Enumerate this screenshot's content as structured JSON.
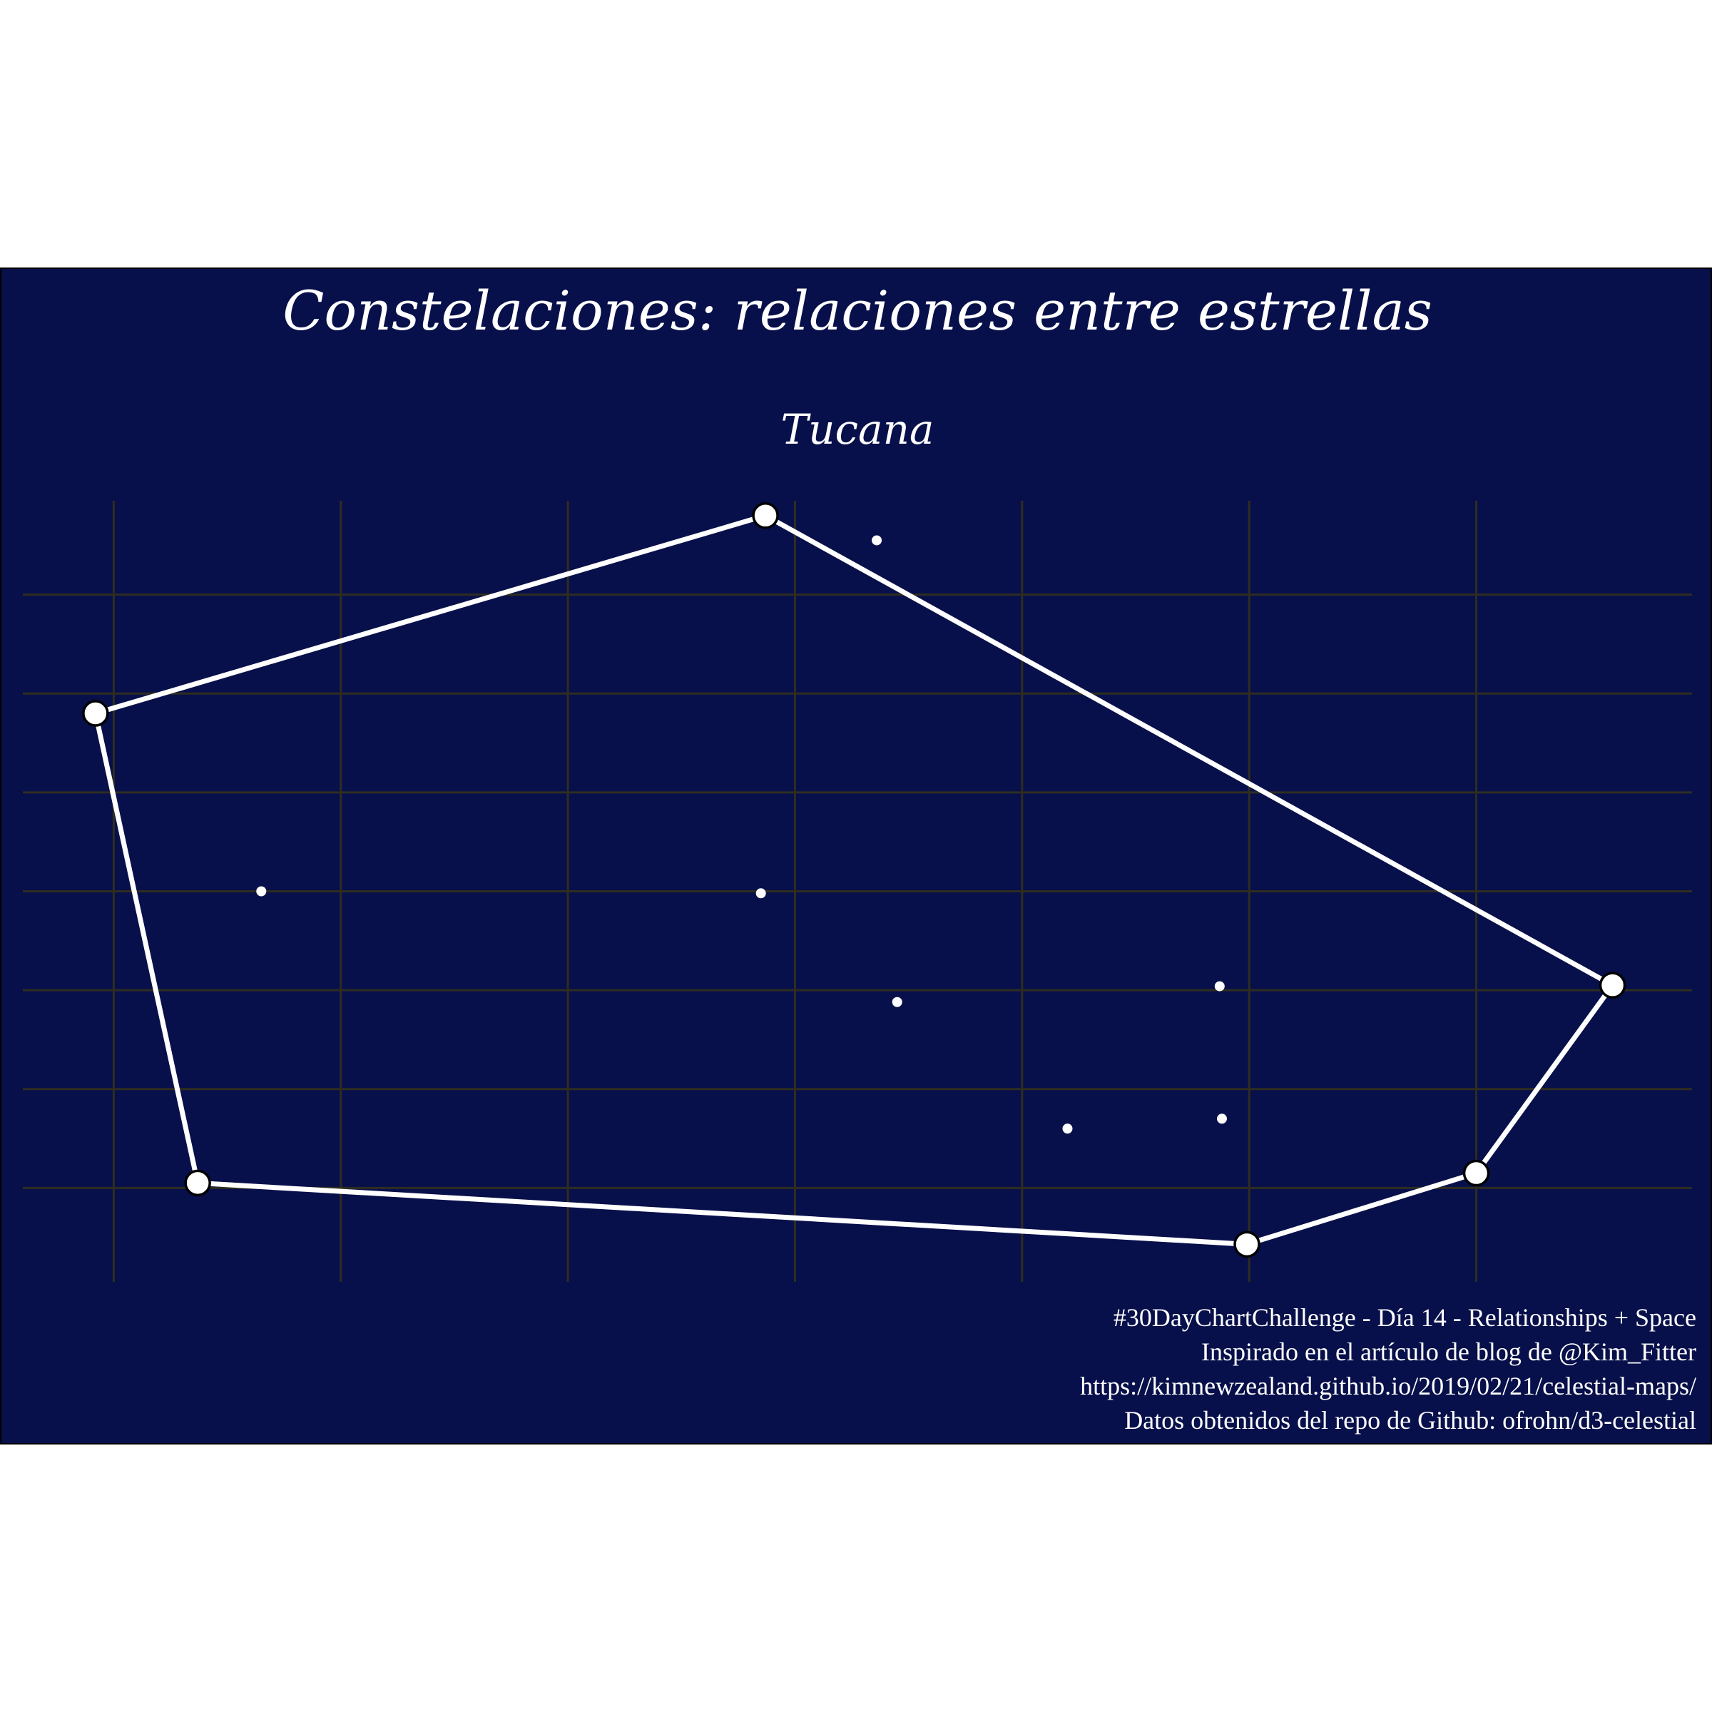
{
  "chart_data": {
    "type": "scatter",
    "title": "Constelaciones: relaciones entre estrellas",
    "subtitle": "Tucana",
    "caption": [
      "#30DayChartChallenge - Día 14 - Relationships + Space",
      "Inspirado en el artículo de blog de @Kim_Fitter",
      "https://kimnewzealand.github.io/2019/02/21/celestial-maps/",
      "Datos obtenidos del repo de Github: ofrohn/d3-celestial"
    ],
    "xlim": [
      -0.4,
      6.95
    ],
    "ylim": [
      -6.95,
      0.95
    ],
    "grid": true,
    "x_grid_lines": [
      0,
      1,
      2,
      3,
      4,
      5,
      6
    ],
    "y_grid_lines": [
      0,
      -1,
      -2,
      -3,
      -4,
      -5,
      -6
    ],
    "line_path": [
      {
        "x": -0.08,
        "y": -1.2
      },
      {
        "x": 2.87,
        "y": 0.8
      },
      {
        "x": 6.6,
        "y": -3.95
      },
      {
        "x": 6.0,
        "y": -5.85
      },
      {
        "x": 4.99,
        "y": -6.57
      },
      {
        "x": 0.37,
        "y": -5.95
      },
      {
        "x": -0.08,
        "y": -1.2
      }
    ],
    "stars_small": [
      {
        "x": 3.36,
        "y": 0.55
      },
      {
        "x": 0.65,
        "y": -3.0
      },
      {
        "x": 2.85,
        "y": -3.02
      },
      {
        "x": 3.45,
        "y": -4.12
      },
      {
        "x": 4.87,
        "y": -3.96
      },
      {
        "x": 4.88,
        "y": -5.3
      },
      {
        "x": 4.2,
        "y": -5.4
      }
    ],
    "colors": {
      "panel": "#07104a",
      "grid": "#2f2d20",
      "star": "#ffffff",
      "outline": "#000000",
      "text": "#ffffff"
    }
  }
}
